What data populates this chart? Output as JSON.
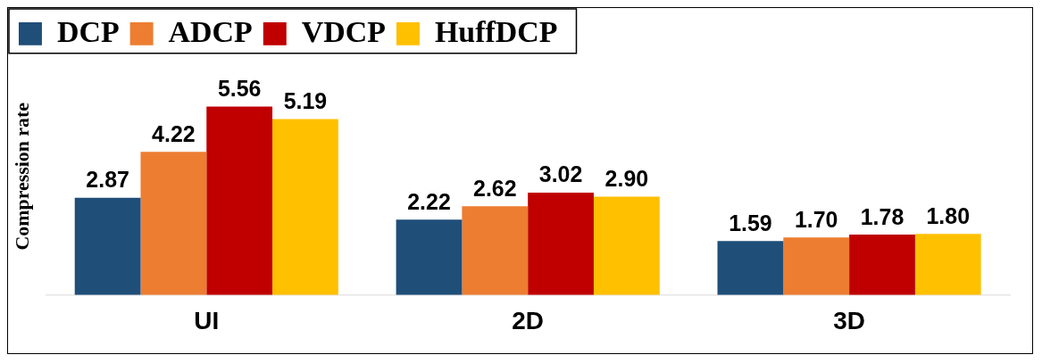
{
  "chart_data": {
    "type": "bar",
    "ylabel": "Compression rate",
    "categories": [
      "UI",
      "2D",
      "3D"
    ],
    "series": [
      {
        "name": "DCP",
        "color": "#1f4e79",
        "values": [
          2.87,
          2.22,
          1.59
        ],
        "value_labels": [
          "2.87",
          "2.22",
          "1.59"
        ]
      },
      {
        "name": "ADCP",
        "color": "#ed7d31",
        "values": [
          4.22,
          2.62,
          1.7
        ],
        "value_labels": [
          "4.22",
          "2.62",
          "1.70"
        ]
      },
      {
        "name": "VDCP",
        "color": "#c00000",
        "values": [
          5.56,
          3.02,
          1.78
        ],
        "value_labels": [
          "5.56",
          "3.02",
          "1.78"
        ]
      },
      {
        "name": "HuffDCP",
        "color": "#ffc000",
        "values": [
          5.19,
          2.9,
          1.8
        ],
        "value_labels": [
          "5.19",
          "2.90",
          "1.80"
        ]
      }
    ],
    "legend": "top left",
    "grid": false,
    "tick_labels": "x"
  }
}
